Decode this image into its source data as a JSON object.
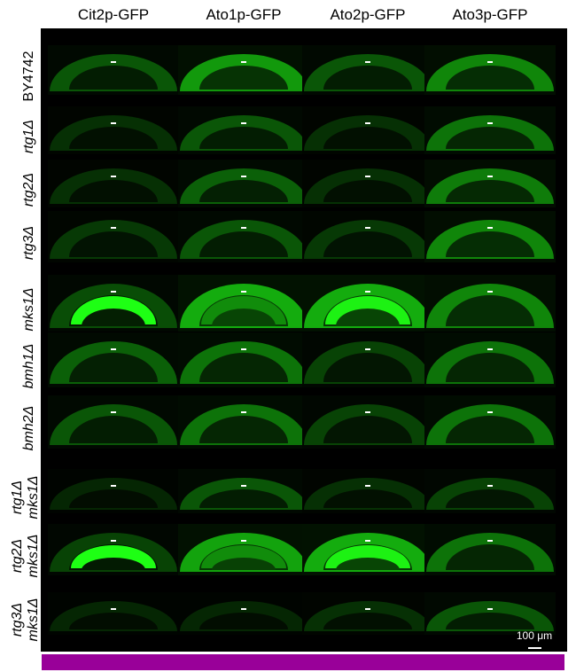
{
  "columns": [
    "Cit2p-GFP",
    "Ato1p-GFP",
    "Ato2p-GFP",
    "Ato3p-GFP"
  ],
  "rows": [
    [
      "BY4742"
    ],
    [
      "rtg1Δ"
    ],
    [
      "rtg2Δ"
    ],
    [
      "rtg3Δ"
    ],
    [
      "mks1Δ"
    ],
    [
      "bmh1Δ"
    ],
    [
      "bmh2Δ"
    ],
    [
      "rtg1Δ",
      "mks1Δ"
    ],
    [
      "rtg2Δ",
      "mks1Δ"
    ],
    [
      "rtg3Δ",
      "mks1Δ"
    ]
  ],
  "scale_bar": "100 μm"
}
